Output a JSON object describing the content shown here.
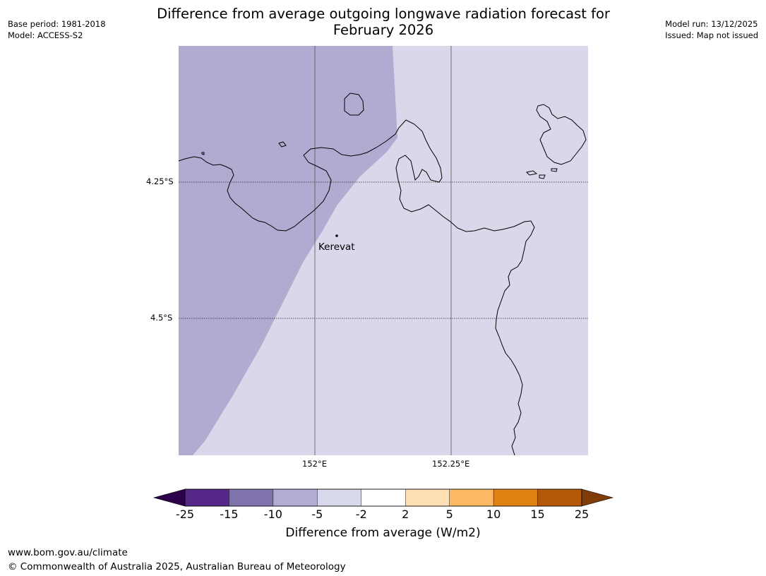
{
  "header": {
    "title_line1": "Difference from average outgoing longwave radiation forecast for",
    "title_line2": "February 2026",
    "base_period": "Base period: 1981-2018",
    "model": "Model: ACCESS-S2",
    "model_run": "Model run: 13/12/2025",
    "issued": "Issued: Map not issued"
  },
  "map": {
    "lat_labels": [
      "4.25°S",
      "4.5°S"
    ],
    "lon_labels": [
      "152°E",
      "152.25°E"
    ],
    "places": [
      {
        "name": "Kerevat",
        "lon": 152.04,
        "lat": -4.35
      }
    ],
    "region_colors": {
      "minus_10_to_minus_5": "#b1abd2",
      "minus_5_to_minus_2": "#d8d8ea"
    }
  },
  "colorbar": {
    "title": "Difference from average (W/m2)",
    "ticks": [
      "-25",
      "-15",
      "-10",
      "-5",
      "-2",
      "2",
      "5",
      "10",
      "15",
      "25"
    ],
    "colors": [
      "#2d004b",
      "#542788",
      "#8073ac",
      "#b2abd2",
      "#d8daeb",
      "#ffffff",
      "#fee0b6",
      "#fdb863",
      "#e08214",
      "#b35806",
      "#7f3b08"
    ]
  },
  "footer": {
    "url": "www.bom.gov.au/climate",
    "copyright": "© Commonwealth of Australia 2025, Australian Bureau of Meteorology"
  }
}
